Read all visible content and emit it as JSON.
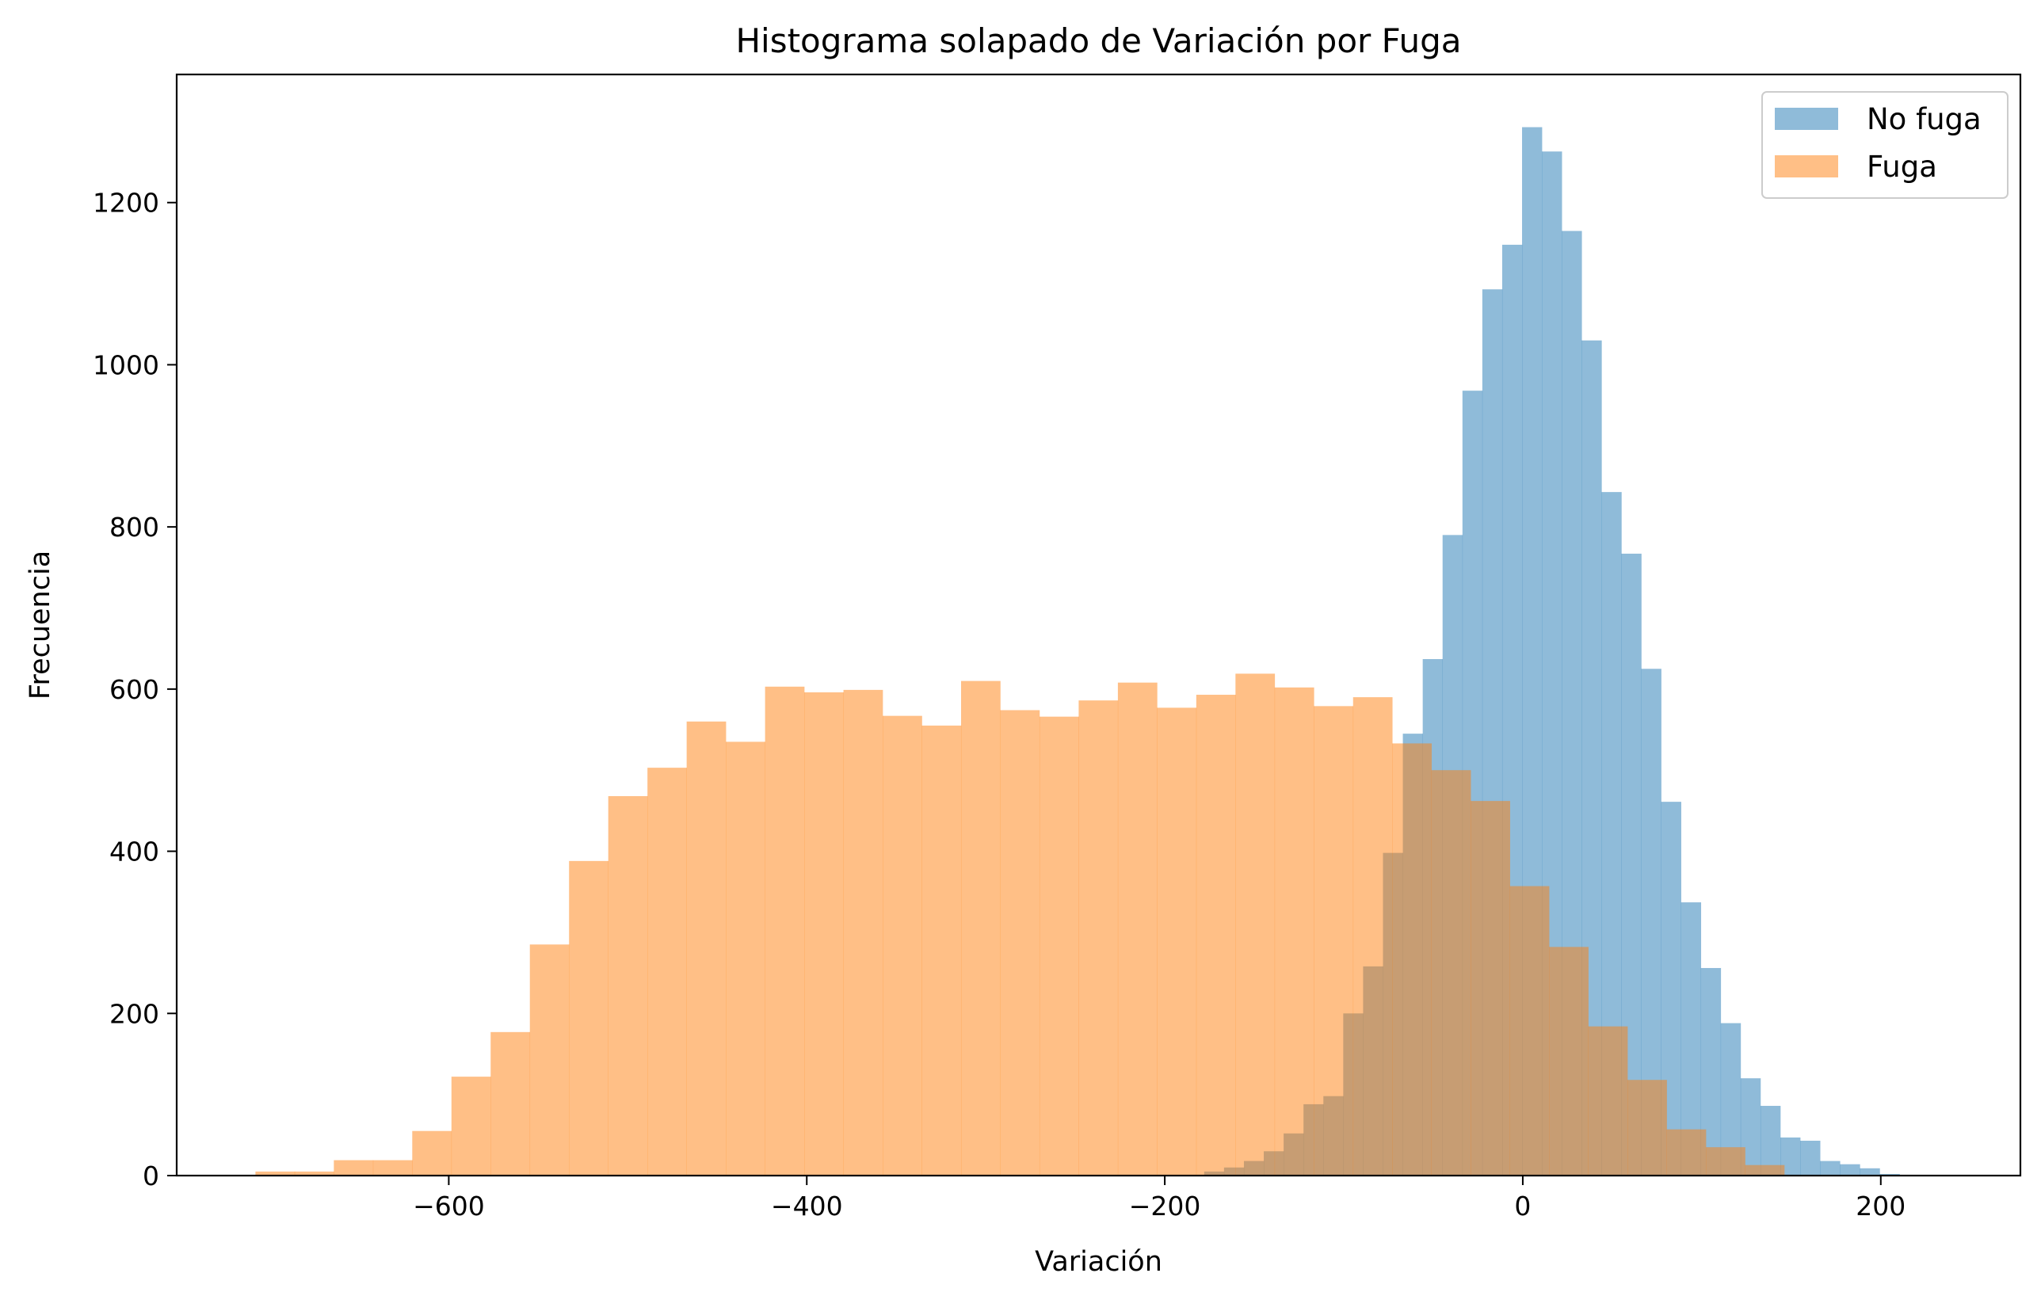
{
  "chart_data": {
    "type": "bar",
    "title": "Histograma solapado de Variación por Fuga",
    "xlabel": "Variación",
    "ylabel": "Frecuencia",
    "xlim": [
      -752,
      278
    ],
    "ylim": [
      0,
      1358
    ],
    "xticks": [
      -600,
      -400,
      -200,
      0,
      200
    ],
    "xtick_labels": [
      "−600",
      "−400",
      "−200",
      "0",
      "200"
    ],
    "yticks": [
      0,
      200,
      400,
      600,
      800,
      1000,
      1200
    ],
    "ytick_labels": [
      "0",
      "200",
      "400",
      "600",
      "800",
      "1000",
      "1200"
    ],
    "grid": false,
    "legend_position": "top-right",
    "series": [
      {
        "name": "No fuga",
        "color": "#1f77b4",
        "alpha": 0.5,
        "bin_start": -178,
        "bin_width": 11.1,
        "values": [
          5,
          10,
          18,
          30,
          52,
          88,
          98,
          200,
          258,
          398,
          545,
          637,
          790,
          968,
          1093,
          1148,
          1293,
          1263,
          1165,
          1030,
          843,
          767,
          625,
          461,
          337,
          256,
          188,
          120,
          86,
          47,
          43,
          18,
          14,
          9,
          2,
          1
        ]
      },
      {
        "name": "Fuga",
        "color": "#ff7f0e",
        "alpha": 0.5,
        "bin_start": -708,
        "bin_width": 21.9,
        "values": [
          5,
          5,
          19,
          19,
          55,
          122,
          177,
          285,
          388,
          468,
          503,
          560,
          535,
          603,
          596,
          599,
          567,
          555,
          610,
          574,
          566,
          586,
          608,
          577,
          593,
          619,
          602,
          579,
          590,
          533,
          500,
          462,
          357,
          282,
          184,
          118,
          57,
          35,
          13
        ]
      }
    ]
  }
}
